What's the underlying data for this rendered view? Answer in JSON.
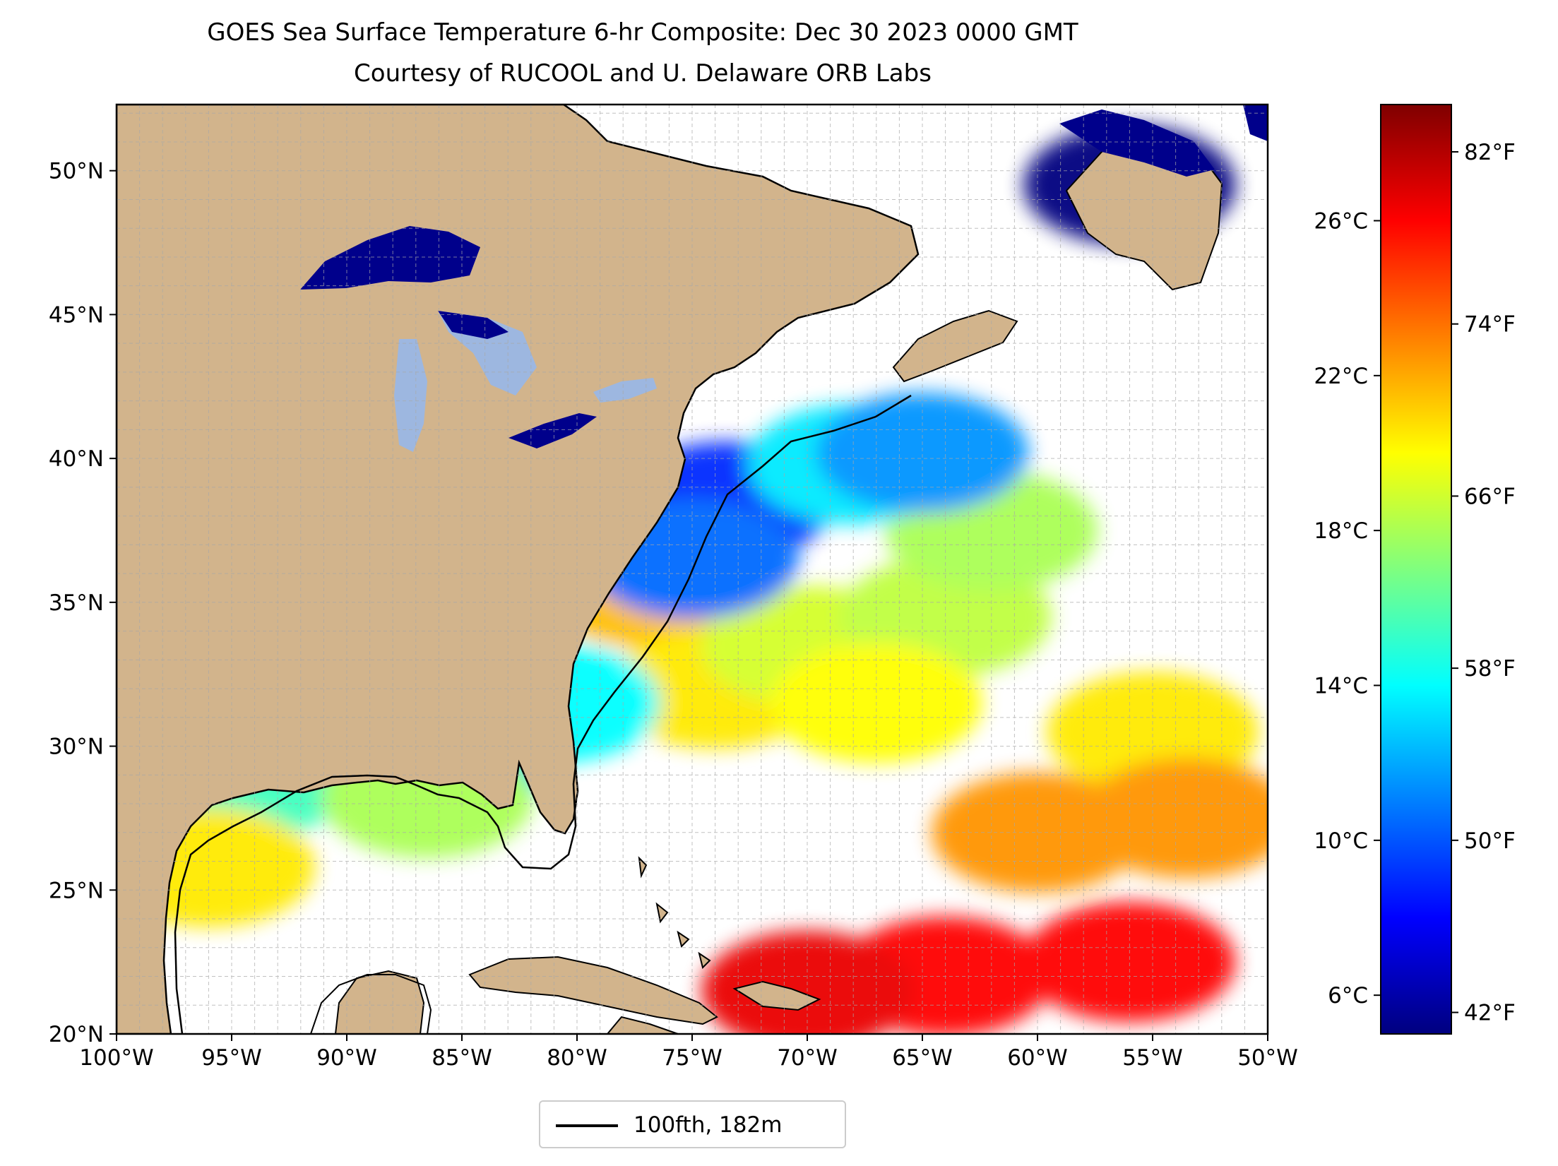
{
  "title": "GOES Sea Surface Temperature 6-hr Composite: Dec 30 2023 0000 GMT",
  "subtitle": "Courtesy of RUCOOL and U. Delaware ORB Labs",
  "map": {
    "lon_range": [
      -100,
      -50
    ],
    "lat_range": [
      20,
      52.3
    ],
    "lon_ticks": [
      {
        "value": -100,
        "label": "100°W"
      },
      {
        "value": -95,
        "label": "95°W"
      },
      {
        "value": -90,
        "label": "90°W"
      },
      {
        "value": -85,
        "label": "85°W"
      },
      {
        "value": -80,
        "label": "80°W"
      },
      {
        "value": -75,
        "label": "75°W"
      },
      {
        "value": -70,
        "label": "70°W"
      },
      {
        "value": -65,
        "label": "65°W"
      },
      {
        "value": -60,
        "label": "60°W"
      },
      {
        "value": -55,
        "label": "55°W"
      },
      {
        "value": -50,
        "label": "50°W"
      }
    ],
    "lat_ticks": [
      {
        "value": 20,
        "label": "20°N"
      },
      {
        "value": 25,
        "label": "25°N"
      },
      {
        "value": 30,
        "label": "30°N"
      },
      {
        "value": 35,
        "label": "35°N"
      },
      {
        "value": 40,
        "label": "40°N"
      },
      {
        "value": 45,
        "label": "45°N"
      },
      {
        "value": 50,
        "label": "50°N"
      }
    ],
    "grid_step_deg": 1,
    "colors": {
      "land": "#d2b48c",
      "ocean": "#ffffff",
      "lakes": "#9db7e0",
      "grid": "#b0b0b0",
      "coast": "#000000"
    }
  },
  "colorbar": {
    "range_c": [
      5,
      29
    ],
    "celsius_ticks": [
      {
        "value": 6,
        "label": "6°C"
      },
      {
        "value": 10,
        "label": "10°C"
      },
      {
        "value": 14,
        "label": "14°C"
      },
      {
        "value": 18,
        "label": "18°C"
      },
      {
        "value": 22,
        "label": "22°C"
      },
      {
        "value": 26,
        "label": "26°C"
      }
    ],
    "fahrenheit_ticks": [
      {
        "value": 42,
        "label": "42°F"
      },
      {
        "value": 50,
        "label": "50°F"
      },
      {
        "value": 58,
        "label": "58°F"
      },
      {
        "value": 66,
        "label": "66°F"
      },
      {
        "value": 74,
        "label": "74°F"
      },
      {
        "value": 82,
        "label": "82°F"
      }
    ],
    "colormap": "jet",
    "colormap_stops": [
      "#00007f",
      "#0000ff",
      "#007fff",
      "#00ffff",
      "#7fff7f",
      "#ffff00",
      "#ff7f00",
      "#ff0000",
      "#7f0000"
    ]
  },
  "legend": {
    "label": "100fth, 182m",
    "placement": "bottom-center",
    "line_color": "#000000"
  },
  "sst_regions": [
    {
      "lon": -77.0,
      "lat": 35.5,
      "temp_c": 21.5
    },
    {
      "lon": -74.0,
      "lat": 32.0,
      "temp_c": 20.5
    },
    {
      "lon": -70.0,
      "lat": 33.5,
      "temp_c": 19.0
    },
    {
      "lon": -64.0,
      "lat": 34.5,
      "temp_c": 18.5
    },
    {
      "lon": -62.0,
      "lat": 37.5,
      "temp_c": 18.0
    },
    {
      "lon": -67.0,
      "lat": 31.5,
      "temp_c": 20.0
    },
    {
      "lon": -55.0,
      "lat": 30.5,
      "temp_c": 20.5
    },
    {
      "lon": -60.0,
      "lat": 27.0,
      "temp_c": 22.5
    },
    {
      "lon": -53.5,
      "lat": 27.5,
      "temp_c": 22.5
    },
    {
      "lon": -64.0,
      "lat": 22.0,
      "temp_c": 26.0
    },
    {
      "lon": -56.0,
      "lat": 22.5,
      "temp_c": 26.0
    },
    {
      "lon": -70.0,
      "lat": 21.5,
      "temp_c": 26.5
    },
    {
      "lon": -73.5,
      "lat": 38.5,
      "temp_c": 9.0
    },
    {
      "lon": -75.0,
      "lat": 36.5,
      "temp_c": 10.5
    },
    {
      "lon": -68.0,
      "lat": 39.8,
      "temp_c": 13.5
    },
    {
      "lon": -65.0,
      "lat": 40.2,
      "temp_c": 11.5
    },
    {
      "lon": -81.0,
      "lat": 31.5,
      "temp_c": 14.0
    },
    {
      "lon": -94.5,
      "lat": 28.8,
      "temp_c": 15.5
    },
    {
      "lon": -85.5,
      "lat": 29.6,
      "temp_c": 13.0
    },
    {
      "lon": -96.0,
      "lat": 25.8,
      "temp_c": 20.5
    },
    {
      "lon": -86.5,
      "lat": 28.2,
      "temp_c": 18.0
    },
    {
      "lon": -87.5,
      "lat": 48.0,
      "temp_c": 3.5
    },
    {
      "lon": -56.0,
      "lat": 49.5,
      "temp_c": 3.5
    },
    {
      "lon": -83.0,
      "lat": 44.5,
      "temp_c": 3.5
    },
    {
      "lon": -86.8,
      "lat": 43.3,
      "temp_c": 4.0
    }
  ]
}
